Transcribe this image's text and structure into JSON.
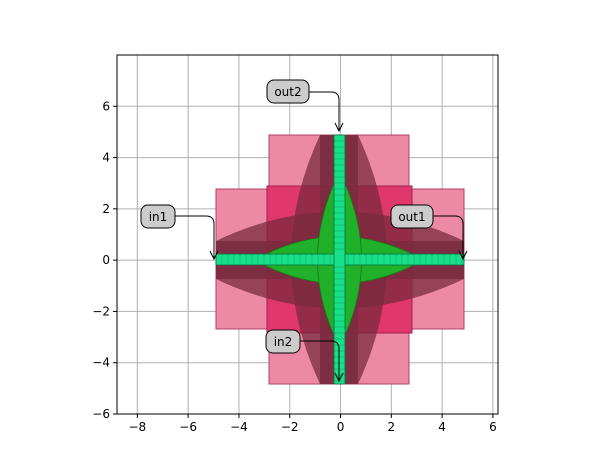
{
  "axes": {
    "xlim": [
      -8.8,
      6.2
    ],
    "ylim": [
      -6.0,
      8.0
    ],
    "xticks": [
      -8,
      -6,
      -4,
      -2,
      0,
      2,
      4,
      6
    ],
    "yticks": [
      -6,
      -4,
      -2,
      0,
      2,
      4,
      6
    ],
    "xtick_labels": [
      "−8",
      "−6",
      "−4",
      "−2",
      "0",
      "2",
      "4",
      "6"
    ],
    "ytick_labels": [
      "−6",
      "−4",
      "−2",
      "0",
      "2",
      "4",
      "6"
    ],
    "grid": true
  },
  "colors": {
    "clad_light": "#ec8aa6",
    "clad_dark": "#e0376d",
    "slab_dark": "#7a3043",
    "core_green": "#21b02a",
    "core_teal": "#18e08a",
    "grid": "#b0b0b0",
    "label_bg": "#cccccc"
  },
  "ports": [
    {
      "id": "in1",
      "label": "in1",
      "x": -4.9,
      "y": 0.0
    },
    {
      "id": "out1",
      "label": "out1",
      "x": 4.9,
      "y": 0.0
    },
    {
      "id": "in2",
      "label": "in2",
      "x": 0.0,
      "y": -4.9
    },
    {
      "id": "out2",
      "label": "out2",
      "x": 0.0,
      "y": 4.9
    }
  ]
}
